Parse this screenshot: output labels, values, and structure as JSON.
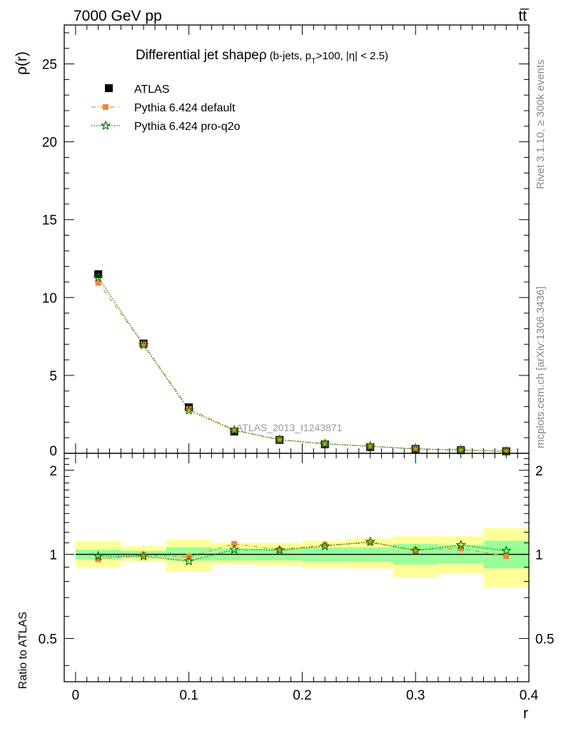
{
  "header": {
    "left": "7000 GeV pp",
    "right": "tt̅"
  },
  "side_labels": {
    "rivet": "Rivet 3.1.10, ≥ 300k events",
    "mcplots": "mcplots.cern.ch [arXiv:1306.3436]"
  },
  "chart_data": {
    "type": "scatter",
    "title": "Differential jet shapeρ",
    "subtitle_parts": [
      "(b-jets, p",
      "T",
      ">100, |η| < 2.5)"
    ],
    "watermark": "ATLAS_2013_I1243871",
    "xlabel": "r",
    "ylabel": "ρ(r)",
    "ratio_ylabel": "Ratio to ATLAS",
    "xlim": [
      -0.01,
      0.4
    ],
    "ylim": [
      0,
      27.5
    ],
    "ratio_ylim": [
      0.35,
      2.3
    ],
    "xticks": [
      "0",
      "0.1",
      "0.2",
      "0.3",
      "0.4"
    ],
    "yticks": [
      "0",
      "5",
      "10",
      "15",
      "20",
      "25"
    ],
    "ratio_yticks": [
      "0.5",
      "1",
      "2"
    ],
    "legend": {
      "position": "top-left"
    },
    "x": [
      0.02,
      0.06,
      0.1,
      0.14,
      0.18,
      0.22,
      0.26,
      0.3,
      0.34,
      0.38
    ],
    "bin_edges": [
      0.0,
      0.04,
      0.08,
      0.12,
      0.16,
      0.2,
      0.24,
      0.28,
      0.32,
      0.36,
      0.4
    ],
    "series": [
      {
        "name": "ATLAS",
        "color": "#000000",
        "marker": "square",
        "values": [
          11.5,
          7.05,
          2.95,
          1.4,
          0.86,
          0.58,
          0.4,
          0.28,
          0.2,
          0.13
        ]
      },
      {
        "name": "Pythia 6.424 default",
        "color": "#f28533",
        "marker": "square-small",
        "line": "dashdot",
        "values": [
          10.95,
          7.0,
          2.85,
          1.5,
          0.87,
          0.62,
          0.45,
          0.29,
          0.21,
          0.13
        ],
        "ratio": [
          0.96,
          0.995,
          0.98,
          1.09,
          1.04,
          1.08,
          1.1,
          1.04,
          1.05,
          0.985
        ]
      },
      {
        "name": "Pythia 6.424 pro-q2o",
        "color": "#007a00",
        "marker": "star",
        "line": "dotted",
        "values": [
          11.3,
          6.95,
          2.75,
          1.48,
          0.87,
          0.61,
          0.45,
          0.28,
          0.21,
          0.13
        ],
        "ratio": [
          0.985,
          0.985,
          0.945,
          1.04,
          1.035,
          1.07,
          1.11,
          1.03,
          1.08,
          1.03
        ]
      }
    ],
    "ratio_bands": {
      "inner_color": "#99ff99",
      "outer_color": "#ffff99",
      "inner": [
        [
          0.96,
          1.04
        ],
        [
          0.97,
          1.03
        ],
        [
          0.95,
          1.06
        ],
        [
          0.95,
          1.05
        ],
        [
          0.95,
          1.05
        ],
        [
          0.94,
          1.06
        ],
        [
          0.94,
          1.06
        ],
        [
          0.92,
          1.09
        ],
        [
          0.93,
          1.08
        ],
        [
          0.89,
          1.12
        ]
      ],
      "outer": [
        [
          0.9,
          1.12
        ],
        [
          0.94,
          1.07
        ],
        [
          0.87,
          1.13
        ],
        [
          0.92,
          1.1
        ],
        [
          0.91,
          1.1
        ],
        [
          0.9,
          1.12
        ],
        [
          0.89,
          1.14
        ],
        [
          0.83,
          1.16
        ],
        [
          0.85,
          1.16
        ],
        [
          0.76,
          1.24
        ]
      ]
    }
  }
}
